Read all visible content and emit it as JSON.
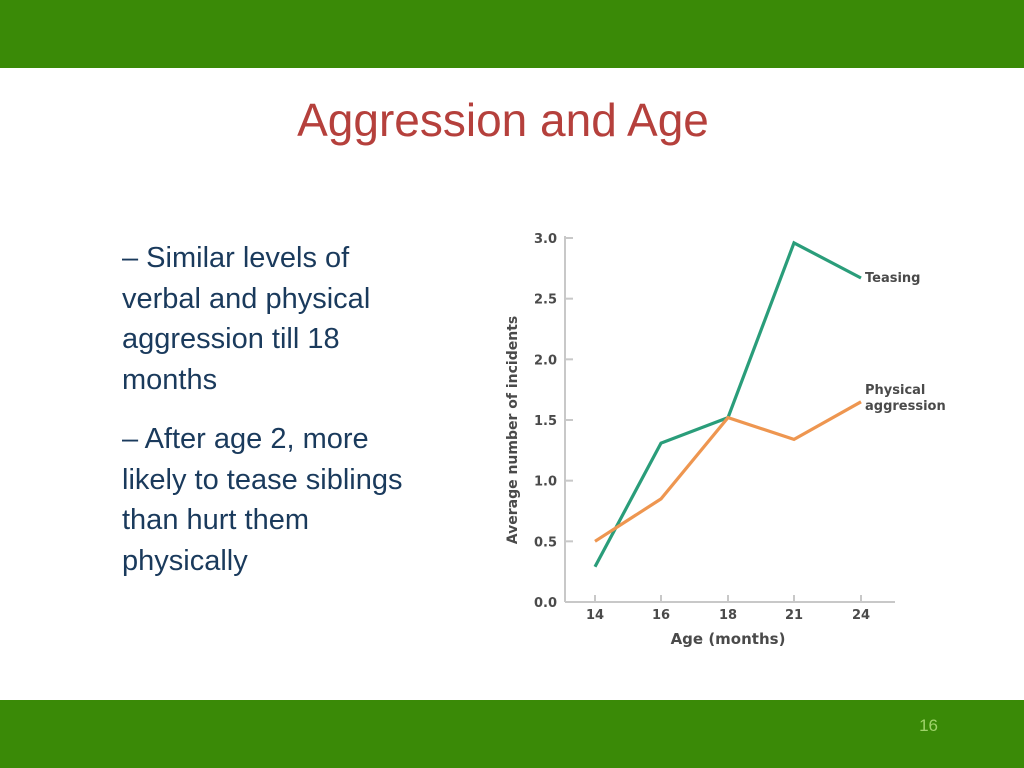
{
  "slide": {
    "title": "Aggression and Age",
    "bullets": [
      "–  Similar levels of verbal and physical aggression till 18 months",
      "–  After age 2, more likely to tease siblings than hurt them physically"
    ],
    "slide_number": "16",
    "colors": {
      "bar": "#3a8a07",
      "title": "#b5403c",
      "body_text": "#1a3a5c",
      "slide_number": "#9fd36a"
    }
  },
  "chart_data": {
    "type": "line",
    "x": [
      14,
      16,
      18,
      21,
      24
    ],
    "x_tick_labels": [
      "14",
      "16",
      "18",
      "21",
      "24"
    ],
    "xlabel": "Age (months)",
    "ylabel": "Average number of incidents",
    "ylim": [
      0,
      3
    ],
    "y_ticks": [
      "0.0",
      "0.5",
      "1.0",
      "1.5",
      "2.0",
      "2.5",
      "3.0"
    ],
    "grid": false,
    "series": [
      {
        "name": "Teasing",
        "color": "#2a9d7a",
        "values": [
          0.29,
          1.31,
          1.52,
          2.96,
          2.67
        ]
      },
      {
        "name": "Physical aggression",
        "label_lines": [
          "Physical",
          "aggression"
        ],
        "color": "#ee9650",
        "values": [
          0.5,
          0.85,
          1.52,
          1.34,
          1.65
        ]
      }
    ]
  }
}
